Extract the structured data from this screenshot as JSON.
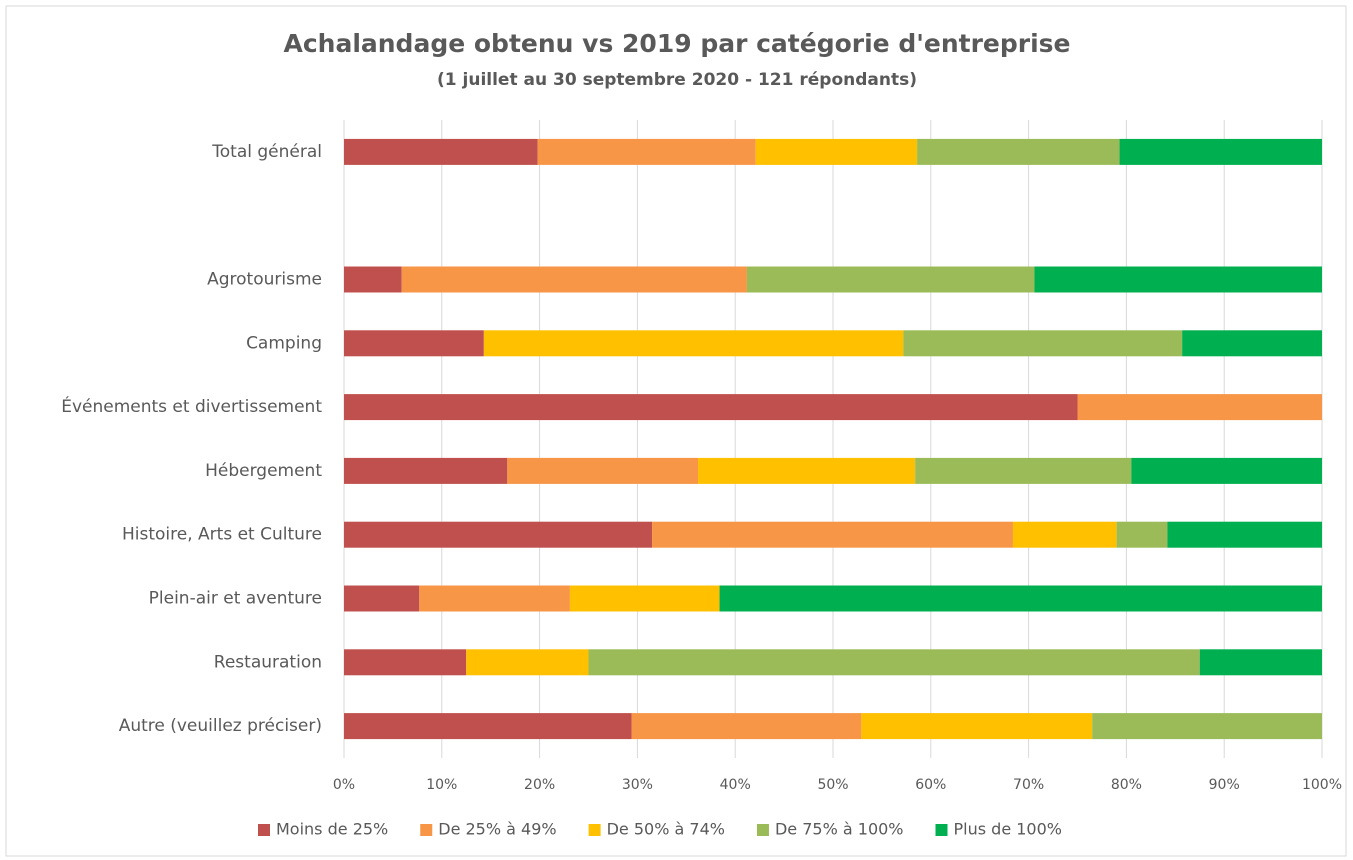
{
  "chart_data": {
    "type": "stacked-barh",
    "title": "Achalandage obtenu vs 2019 par catégorie d'entreprise",
    "subtitle": "(1 juillet au 30 septembre 2020 - 121 répondants)",
    "categories": [
      "Total général",
      null,
      "Agrotourisme",
      "Camping",
      "Événements et divertissement",
      "Hébergement",
      "Histoire, Arts et Culture",
      "Plein-air et aventure",
      "Restauration",
      "Autre (veuillez préciser)"
    ],
    "series": [
      {
        "name": "Moins de 25%",
        "color": "#c0504d",
        "values": [
          19.8,
          null,
          5.9,
          14.3,
          75,
          16.7,
          31.5,
          7.7,
          12.5,
          29.4
        ]
      },
      {
        "name": "De 25% à 49%",
        "color": "#f79646",
        "values": [
          22.3,
          null,
          35.3,
          0,
          25,
          19.5,
          36.9,
          15.4,
          0,
          23.5
        ]
      },
      {
        "name": "De 50% à 74%",
        "color": "#ffc000",
        "values": [
          16.5,
          null,
          0,
          42.9,
          0,
          22.2,
          10.6,
          15.3,
          12.5,
          23.6
        ]
      },
      {
        "name": "De 75% à 100%",
        "color": "#9bbb59",
        "values": [
          20.7,
          null,
          29.4,
          28.5,
          0,
          22.1,
          5.2,
          0,
          62.5,
          23.5
        ]
      },
      {
        "name": "Plus de 100%",
        "color": "#00b050",
        "values": [
          20.7,
          null,
          29.4,
          14.3,
          0,
          19.5,
          15.8,
          61.6,
          12.5,
          0
        ]
      }
    ],
    "xlim": [
      0,
      100
    ],
    "xticks": [
      {
        "value": 0,
        "label": "0%"
      },
      {
        "value": 10,
        "label": "10%"
      },
      {
        "value": 20,
        "label": "20%"
      },
      {
        "value": 30,
        "label": "30%"
      },
      {
        "value": 40,
        "label": "40%"
      },
      {
        "value": 50,
        "label": "50%"
      },
      {
        "value": 60,
        "label": "60%"
      },
      {
        "value": 70,
        "label": "70%"
      },
      {
        "value": 80,
        "label": "80%"
      },
      {
        "value": 90,
        "label": "90%"
      },
      {
        "value": 100,
        "label": "100%"
      }
    ],
    "grid": true,
    "legend": "bottom"
  }
}
